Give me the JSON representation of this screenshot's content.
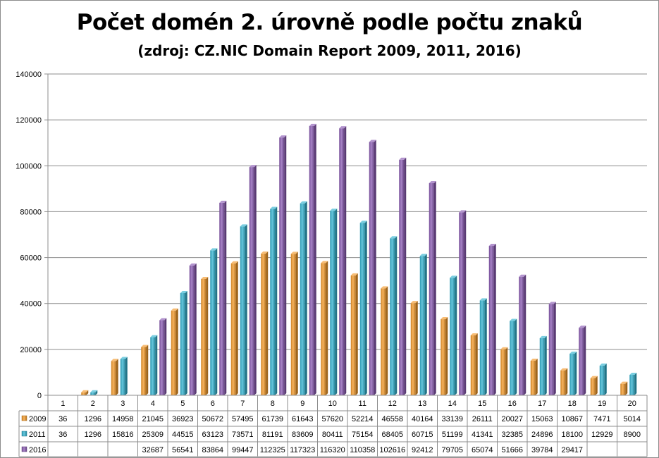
{
  "title": "Počet domén 2. úrovně  podle počtu znaků",
  "subtitle": "(zdroj: CZ.NIC Domain Report 2009, 2011, 2016)",
  "chart_data": {
    "type": "bar",
    "categories": [
      "1",
      "2",
      "3",
      "4",
      "5",
      "6",
      "7",
      "8",
      "9",
      "10",
      "11",
      "12",
      "13",
      "14",
      "15",
      "16",
      "17",
      "18",
      "19",
      "20"
    ],
    "series": [
      {
        "name": "2009",
        "color": "#f39a2a",
        "values": [
          36,
          1296,
          14958,
          21045,
          36923,
          50672,
          57495,
          61739,
          61643,
          57620,
          52214,
          46558,
          40164,
          33139,
          26111,
          20027,
          15063,
          10867,
          7471,
          5014
        ]
      },
      {
        "name": "2011",
        "color": "#33b3d0",
        "values": [
          36,
          1296,
          15816,
          25309,
          44515,
          63123,
          73571,
          81191,
          83609,
          80411,
          75154,
          68405,
          60715,
          51199,
          41341,
          32385,
          24896,
          18100,
          12929,
          8900
        ]
      },
      {
        "name": "2016",
        "color": "#8a5bb3",
        "values": [
          null,
          null,
          null,
          32687,
          56541,
          83864,
          99447,
          112325,
          117323,
          116320,
          110358,
          102616,
          92412,
          79705,
          65074,
          51666,
          39784,
          29417,
          null,
          null
        ]
      }
    ],
    "ylim": [
      0,
      140000
    ],
    "yticks": [
      "0",
      "20000",
      "40000",
      "60000",
      "80000",
      "100000",
      "120000",
      "140000"
    ],
    "grid": true,
    "legend": "data table"
  }
}
